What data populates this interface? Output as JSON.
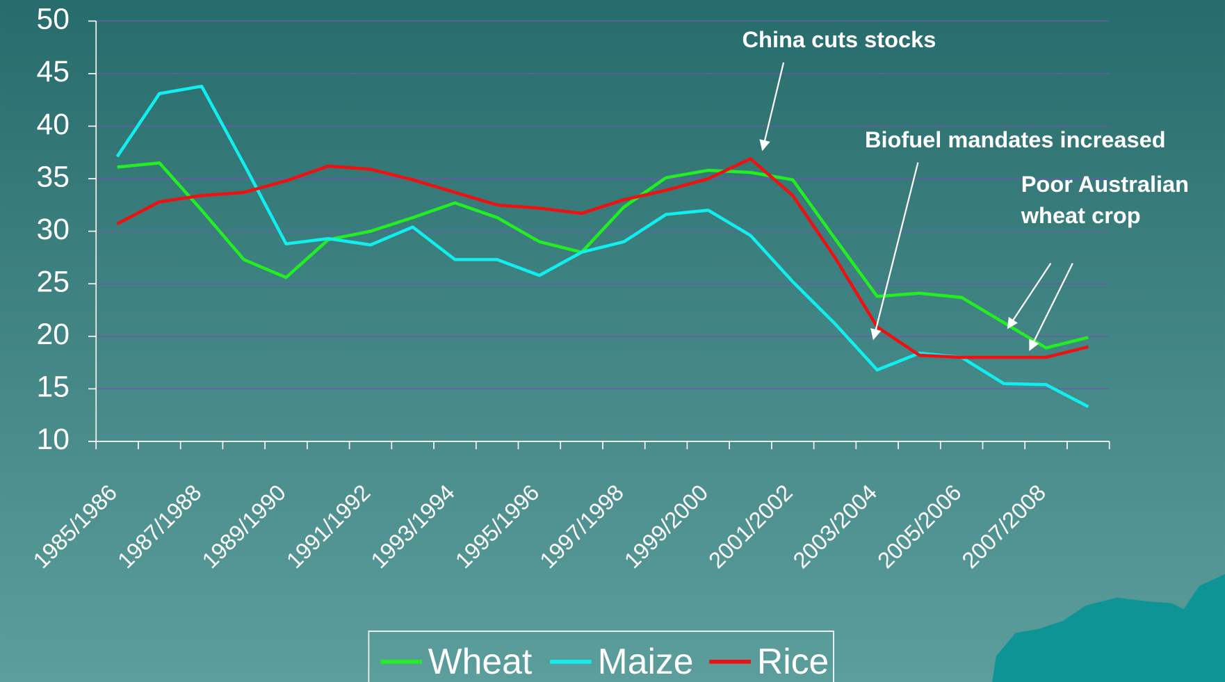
{
  "chart_data": {
    "type": "line",
    "categories": [
      "1985/1986",
      null,
      "1987/1988",
      null,
      "1989/1990",
      null,
      "1991/1992",
      null,
      "1993/1994",
      null,
      "1995/1996",
      null,
      "1997/1998",
      null,
      "1999/2000",
      null,
      "2001/2002",
      null,
      "2003/2004",
      null,
      "2005/2006",
      null,
      "2007/2008",
      null
    ],
    "series": [
      {
        "name": "Wheat",
        "color": "#22ee22",
        "values": [
          36.1,
          36.5,
          32,
          27.3,
          25.6,
          29.2,
          30,
          31.3,
          32.7,
          31.3,
          29,
          28,
          32.3,
          35.1,
          35.8,
          35.6,
          34.9,
          29.3,
          23.8,
          24.1,
          23.7,
          21.3,
          18.9,
          19.9
        ]
      },
      {
        "name": "Maize",
        "color": "#11eeee",
        "values": [
          37.1,
          43.1,
          43.8,
          36.4,
          28.8,
          29.3,
          28.7,
          30.4,
          27.3,
          27.3,
          25.8,
          28,
          29,
          31.6,
          32,
          29.6,
          25.2,
          21.2,
          16.8,
          18.4,
          18,
          15.5,
          15.4,
          13.3
        ]
      },
      {
        "name": "Rice",
        "color": "#ee1111",
        "values": [
          30.7,
          32.8,
          33.4,
          33.7,
          34.8,
          36.2,
          35.9,
          34.9,
          33.7,
          32.5,
          32.2,
          31.7,
          33,
          33.9,
          35,
          36.9,
          33.4,
          27.5,
          20.9,
          18.2,
          18,
          18,
          18,
          19
        ]
      }
    ],
    "ylim": [
      10,
      50
    ],
    "yticks": [
      10,
      15,
      20,
      25,
      30,
      35,
      40,
      45,
      50
    ],
    "grid": true,
    "annotations": [
      {
        "lines": [
          "China cuts stocks"
        ]
      },
      {
        "lines": [
          "Biofuel mandates increased"
        ]
      },
      {
        "lines": [
          "Poor Australian",
          "wheat crop"
        ]
      }
    ]
  }
}
